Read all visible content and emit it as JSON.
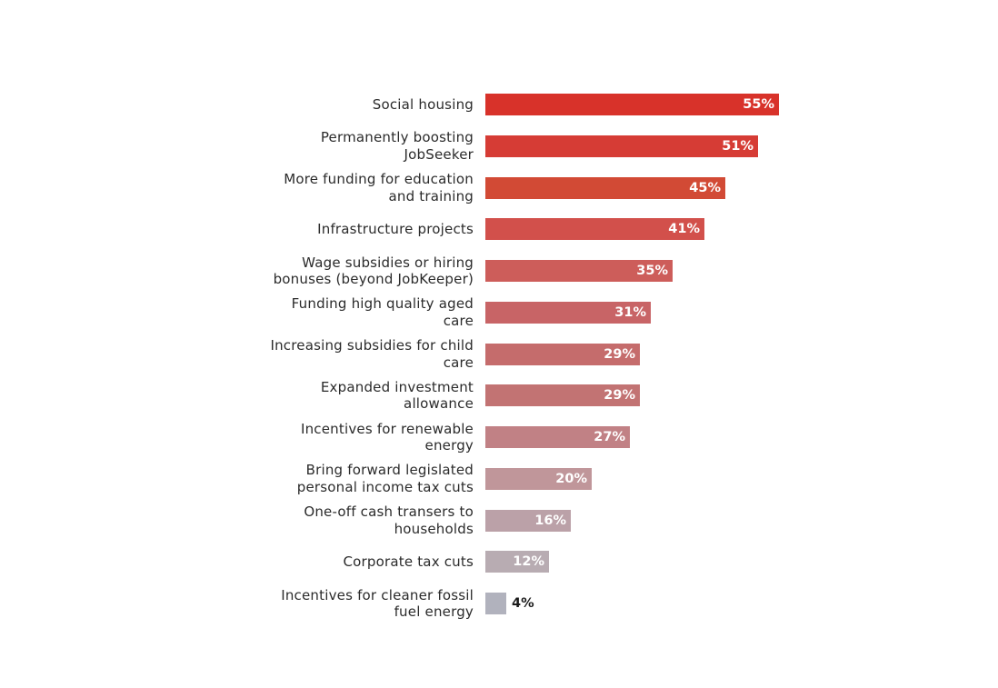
{
  "chart_data": {
    "type": "bar",
    "orientation": "horizontal",
    "title": "",
    "xlabel": "",
    "ylabel": "",
    "grid": false,
    "legend": null,
    "xlim": [
      0,
      55
    ],
    "categories": [
      "Social housing",
      "Permanently boosting JobSeeker",
      "More funding for education and training",
      "Infrastructure projects",
      "Wage subsidies or hiring bonuses (beyond JobKeeper)",
      "Funding high quality aged care",
      "Increasing subsidies for child care",
      "Expanded investment allowance",
      "Incentives for renewable energy",
      "Bring forward legislated personal income tax cuts",
      "One-off cash transers to households",
      "Corporate tax cuts",
      "Incentives for cleaner fossil fuel energy"
    ],
    "values": [
      55,
      51,
      45,
      41,
      35,
      31,
      29,
      29,
      27,
      20,
      16,
      12,
      4
    ],
    "value_labels": [
      "55%",
      "51%",
      "45%",
      "41%",
      "35%",
      "31%",
      "29%",
      "29%",
      "27%",
      "20%",
      "16%",
      "12%",
      "4%"
    ],
    "label_lines": [
      [
        "Social housing"
      ],
      [
        "Permanently boosting",
        "JobSeeker"
      ],
      [
        "More funding for education",
        "and training"
      ],
      [
        "Infrastructure projects"
      ],
      [
        "Wage subsidies or hiring",
        "bonuses (beyond JobKeeper)"
      ],
      [
        "Funding high quality aged",
        "care"
      ],
      [
        "Increasing subsidies for child",
        "care"
      ],
      [
        "Expanded investment",
        "allowance"
      ],
      [
        "Incentives for renewable",
        "energy"
      ],
      [
        "Bring forward legislated",
        "personal income tax cuts"
      ],
      [
        "One-off cash transers to",
        "households"
      ],
      [
        "Corporate tax cuts"
      ],
      [
        "Incentives for cleaner fossil",
        "fuel energy"
      ]
    ],
    "colors": [
      "#d8322a",
      "#d63c35",
      "#d24a35",
      "#d2504b",
      "#cd5d5a",
      "#c86466",
      "#c56c6c",
      "#c27373",
      "#c18185",
      "#c0969a",
      "#bba1a8",
      "#b8acb2",
      "#b1b2bd"
    ]
  }
}
